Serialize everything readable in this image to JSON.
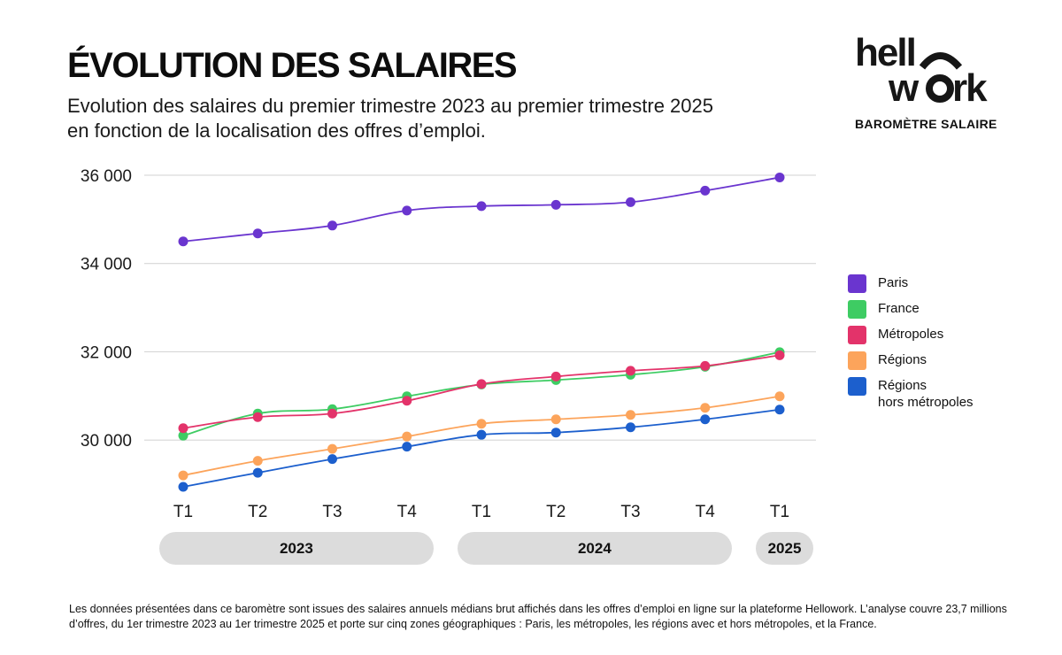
{
  "header": {
    "title": "ÉVOLUTION DES SALAIRES",
    "subtitle": "Evolution des salaires du premier trimestre 2023 au premier trimestre 2025 en fonction de la localisation des offres d’emploi."
  },
  "brand": {
    "logo_line1": "hellowork",
    "tagline": "BAROMÈTRE SALAIRE"
  },
  "chart_data": {
    "type": "line",
    "title": "ÉVOLUTION DES SALAIRES",
    "xlabel": "",
    "ylabel": "",
    "categories": [
      "T1",
      "T2",
      "T3",
      "T4",
      "T1",
      "T2",
      "T3",
      "T4",
      "T1"
    ],
    "years": [
      {
        "label": "2023",
        "quarters": 4
      },
      {
        "label": "2024",
        "quarters": 4
      },
      {
        "label": "2025",
        "quarters": 1
      }
    ],
    "ylim": [
      28700,
      36400
    ],
    "yticks": [
      30000,
      32000,
      34000,
      36000
    ],
    "ytick_labels": [
      "30 000",
      "32 000",
      "34 000",
      "36 000"
    ],
    "grid": true,
    "legend_position": "right",
    "series": [
      {
        "name": "Paris",
        "color": "#6a35cf",
        "values": [
          34500,
          34680,
          34860,
          35200,
          35300,
          35330,
          35390,
          35650,
          35950
        ]
      },
      {
        "name": "France",
        "color": "#3ecc63",
        "values": [
          30100,
          30600,
          30700,
          30990,
          31260,
          31360,
          31480,
          31660,
          31990
        ]
      },
      {
        "name": "Métropoles",
        "color": "#e3336a",
        "values": [
          30270,
          30520,
          30600,
          30890,
          31270,
          31440,
          31570,
          31680,
          31920
        ]
      },
      {
        "name": "Régions",
        "color": "#fca45b",
        "values": [
          29200,
          29530,
          29800,
          30080,
          30370,
          30470,
          30570,
          30730,
          30990
        ]
      },
      {
        "name": "Régions\nhors métropoles",
        "color": "#1c5fcd",
        "values": [
          28940,
          29260,
          29570,
          29850,
          30120,
          30170,
          30290,
          30470,
          30690
        ]
      }
    ]
  },
  "footnote": "Les données présentées dans ce baromètre sont issues des salaires annuels médians brut affichés dans les offres d’emploi en ligne sur la plateforme Hellowork. L’analyse couvre 23,7 millions d’offres, du 1er trimestre 2023 au 1er trimestre 2025 et porte sur cinq zones géographiques : Paris, les métropoles, les régions avec et hors métropoles, et la France."
}
